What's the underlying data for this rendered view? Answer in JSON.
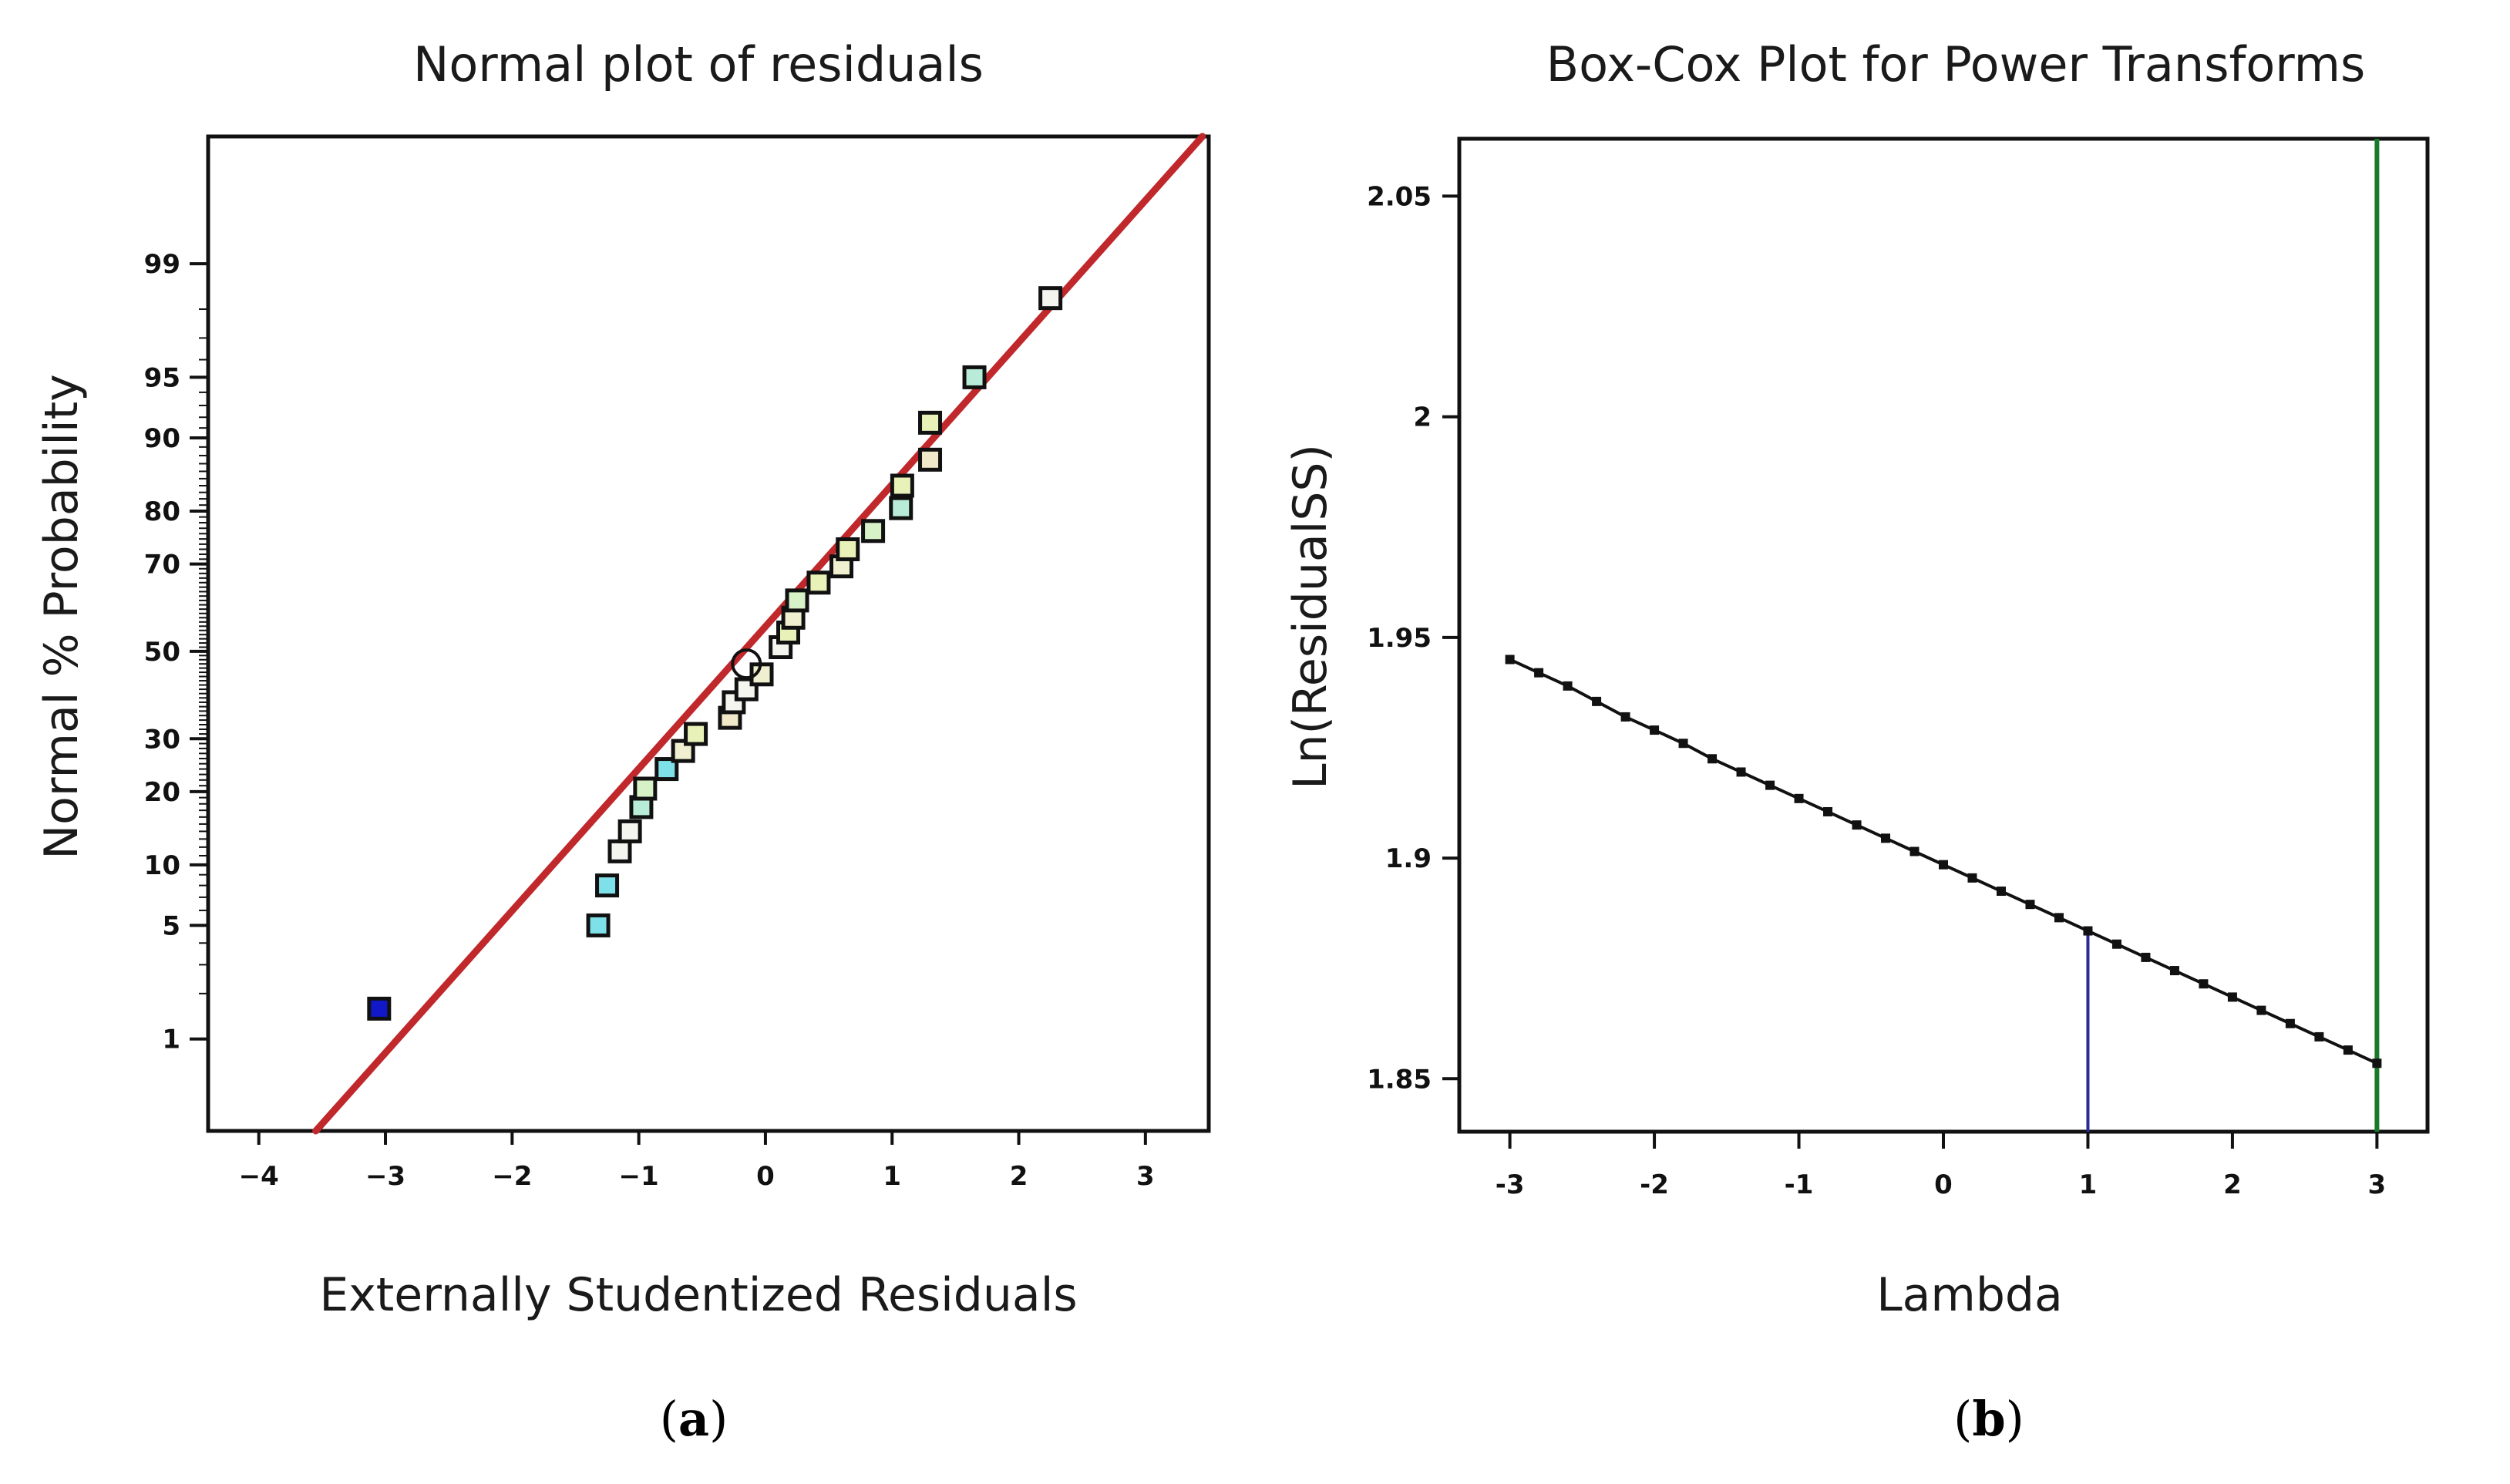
{
  "chart_data": [
    {
      "type": "scatter",
      "subtype": "normal-probability",
      "panel_label": "(a)",
      "panel_letter": "a",
      "title": "Normal plot of residuals",
      "xlabel": "Externally Studentized Residuals",
      "ylabel": "Normal % Probability",
      "xlim": [
        -4.4,
        3.5
      ],
      "ylim_percent": [
        0.2,
        99.9
      ],
      "x_ticks": [
        -4,
        -3,
        -2,
        -1,
        0,
        1,
        2,
        3
      ],
      "x_tick_labels": [
        "−4",
        "−3",
        "−2",
        "−1",
        "0",
        "1",
        "2",
        "3"
      ],
      "y_ticks": [
        1,
        5,
        10,
        20,
        30,
        50,
        70,
        80,
        90,
        95,
        99
      ],
      "y_tick_labels": [
        "1",
        "5",
        "10",
        "20",
        "30",
        "50",
        "70",
        "80",
        "90",
        "95",
        "99"
      ],
      "reference_line": {
        "x": [
          -3.55,
          3.45
        ],
        "percent": [
          0.2,
          99.9
        ],
        "color": "#c0282b"
      },
      "points": [
        {
          "x": -3.05,
          "p": 1.6,
          "color": "#1018c8"
        },
        {
          "x": -1.32,
          "p": 5.0,
          "color": "#7ee0e8"
        },
        {
          "x": -1.25,
          "p": 8.0,
          "color": "#7ee0e8"
        },
        {
          "x": -1.15,
          "p": 11.5,
          "color": "#f5f5f0"
        },
        {
          "x": -1.07,
          "p": 14.0,
          "color": "#f5f5f0"
        },
        {
          "x": -0.98,
          "p": 17.5,
          "color": "#b8ecd8"
        },
        {
          "x": -0.95,
          "p": 20.5,
          "color": "#d8f2c8"
        },
        {
          "x": -0.78,
          "p": 24.0,
          "color": "#7ee0e8"
        },
        {
          "x": -0.65,
          "p": 27.5,
          "color": "#f0f0d0"
        },
        {
          "x": -0.55,
          "p": 31.0,
          "color": "#e8f2b8"
        },
        {
          "x": -0.28,
          "p": 34.5,
          "color": "#f0e8c8"
        },
        {
          "x": -0.25,
          "p": 38.0,
          "color": "#f5f5f0"
        },
        {
          "x": -0.15,
          "p": 41.0,
          "color": "#f5f5f0"
        },
        {
          "x": -0.03,
          "p": 44.5,
          "color": "#f0f0d0"
        },
        {
          "x": 0.12,
          "p": 51.0,
          "color": "#f5f5f0"
        },
        {
          "x": 0.18,
          "p": 54.5,
          "color": "#e8f2b8"
        },
        {
          "x": 0.22,
          "p": 58.0,
          "color": "#f0f0d0"
        },
        {
          "x": 0.25,
          "p": 62.0,
          "color": "#d8f2c8"
        },
        {
          "x": 0.42,
          "p": 66.0,
          "color": "#e8f2b8"
        },
        {
          "x": 0.6,
          "p": 69.5,
          "color": "#f0f0d0"
        },
        {
          "x": 0.65,
          "p": 73.0,
          "color": "#e8f2b8"
        },
        {
          "x": 0.85,
          "p": 76.5,
          "color": "#d8f2c8"
        },
        {
          "x": 1.07,
          "p": 80.5,
          "color": "#b8ecd8"
        },
        {
          "x": 1.08,
          "p": 84.0,
          "color": "#e8f2b8"
        },
        {
          "x": 1.3,
          "p": 87.5,
          "color": "#f0e8c8"
        },
        {
          "x": 1.3,
          "p": 91.5,
          "color": "#e8f2b8"
        },
        {
          "x": 1.65,
          "p": 95.0,
          "color": "#b8ecd8"
        },
        {
          "x": 2.25,
          "p": 98.3,
          "color": "#f5f5f0"
        }
      ],
      "highlight_circle": {
        "x": -0.15,
        "p": 47.0
      }
    },
    {
      "type": "line",
      "subtype": "box-cox",
      "panel_label": "(b)",
      "panel_letter": "b",
      "title": "Box-Cox Plot for Power Transforms",
      "xlabel": "Lambda",
      "ylabel": "Ln(ResidualSS)",
      "xlim": [
        -3.35,
        3.35
      ],
      "ylim": [
        1.838,
        2.063
      ],
      "x_ticks": [
        -3,
        -2,
        -1,
        0,
        1,
        2,
        3
      ],
      "x_tick_labels": [
        "-3",
        "-2",
        "-1",
        "0",
        "1",
        "2",
        "3"
      ],
      "y_ticks": [
        1.85,
        1.9,
        1.95,
        2.0,
        2.05
      ],
      "y_tick_labels": [
        "1.85",
        "1.9",
        "1.95",
        "2",
        "2.05"
      ],
      "series": [
        {
          "name": "Ln(ResidualSS)",
          "color": "#111111",
          "x": [
            -3.0,
            -2.8,
            -2.6,
            -2.4,
            -2.2,
            -2.0,
            -1.8,
            -1.6,
            -1.4,
            -1.2,
            -1.0,
            -0.8,
            -0.6,
            -0.4,
            -0.2,
            0.0,
            0.2,
            0.4,
            0.6,
            0.8,
            1.0,
            1.2,
            1.4,
            1.6,
            1.8,
            2.0,
            2.2,
            2.4,
            2.6,
            2.8,
            3.0
          ],
          "y": [
            1.945,
            1.942,
            1.939,
            1.9355,
            1.932,
            1.929,
            1.926,
            1.9225,
            1.9195,
            1.9165,
            1.9135,
            1.9105,
            1.9075,
            1.9045,
            1.9015,
            1.8985,
            1.8955,
            1.8925,
            1.8895,
            1.8865,
            1.8835,
            1.8805,
            1.8775,
            1.8745,
            1.8715,
            1.8685,
            1.8655,
            1.8625,
            1.8595,
            1.8565,
            1.8535
          ]
        }
      ],
      "current_lambda": {
        "x": 1.0,
        "color": "#2a2a9a"
      },
      "best_lambda": {
        "x": 3.0,
        "color": "#1a7a2a"
      }
    }
  ]
}
